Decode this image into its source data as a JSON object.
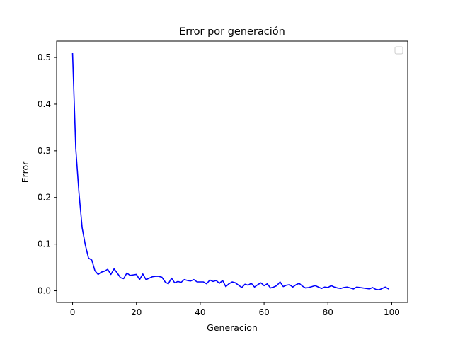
{
  "chart_data": {
    "type": "line",
    "title": "Error por generación",
    "xlabel": "Generacion",
    "ylabel": "Error",
    "xlim": [
      -5,
      105
    ],
    "ylim": [
      -0.025,
      0.535
    ],
    "xticks": [
      0,
      20,
      40,
      60,
      80,
      100
    ],
    "xtick_labels": [
      "0",
      "20",
      "40",
      "60",
      "80",
      "100"
    ],
    "yticks": [
      0.0,
      0.1,
      0.2,
      0.3,
      0.4,
      0.5
    ],
    "ytick_labels": [
      "0.0",
      "0.1",
      "0.2",
      "0.3",
      "0.4",
      "0.5"
    ],
    "grid": false,
    "legend": {
      "placement": "top-right",
      "entries": []
    },
    "series": [
      {
        "color": "#0000ff",
        "x": [
          0,
          1,
          2,
          3,
          4,
          5,
          6,
          7,
          8,
          9,
          10,
          11,
          12,
          13,
          14,
          15,
          16,
          17,
          18,
          19,
          20,
          21,
          22,
          23,
          24,
          25,
          26,
          27,
          28,
          29,
          30,
          31,
          32,
          33,
          34,
          35,
          36,
          37,
          38,
          39,
          40,
          41,
          42,
          43,
          44,
          45,
          46,
          47,
          48,
          49,
          50,
          51,
          52,
          53,
          54,
          55,
          56,
          57,
          58,
          59,
          60,
          61,
          62,
          63,
          64,
          65,
          66,
          67,
          68,
          69,
          70,
          71,
          72,
          73,
          74,
          75,
          76,
          77,
          78,
          79,
          80,
          81,
          82,
          83,
          84,
          85,
          86,
          87,
          88,
          89,
          90,
          91,
          92,
          93,
          94,
          95,
          96,
          97,
          98,
          99
        ],
        "y": [
          0.508,
          0.305,
          0.21,
          0.135,
          0.098,
          0.07,
          0.066,
          0.043,
          0.035,
          0.04,
          0.042,
          0.046,
          0.035,
          0.047,
          0.038,
          0.028,
          0.026,
          0.038,
          0.033,
          0.034,
          0.035,
          0.024,
          0.036,
          0.024,
          0.027,
          0.03,
          0.031,
          0.031,
          0.029,
          0.019,
          0.015,
          0.027,
          0.017,
          0.02,
          0.018,
          0.024,
          0.022,
          0.021,
          0.024,
          0.019,
          0.019,
          0.019,
          0.015,
          0.023,
          0.02,
          0.022,
          0.016,
          0.022,
          0.009,
          0.015,
          0.019,
          0.017,
          0.012,
          0.007,
          0.014,
          0.012,
          0.016,
          0.008,
          0.013,
          0.017,
          0.011,
          0.015,
          0.006,
          0.008,
          0.011,
          0.019,
          0.009,
          0.012,
          0.013,
          0.008,
          0.013,
          0.016,
          0.01,
          0.006,
          0.007,
          0.009,
          0.011,
          0.008,
          0.005,
          0.008,
          0.007,
          0.011,
          0.008,
          0.006,
          0.005,
          0.007,
          0.008,
          0.006,
          0.004,
          0.008,
          0.007,
          0.006,
          0.005,
          0.004,
          0.007,
          0.003,
          0.002,
          0.005,
          0.008,
          0.004
        ]
      }
    ]
  }
}
